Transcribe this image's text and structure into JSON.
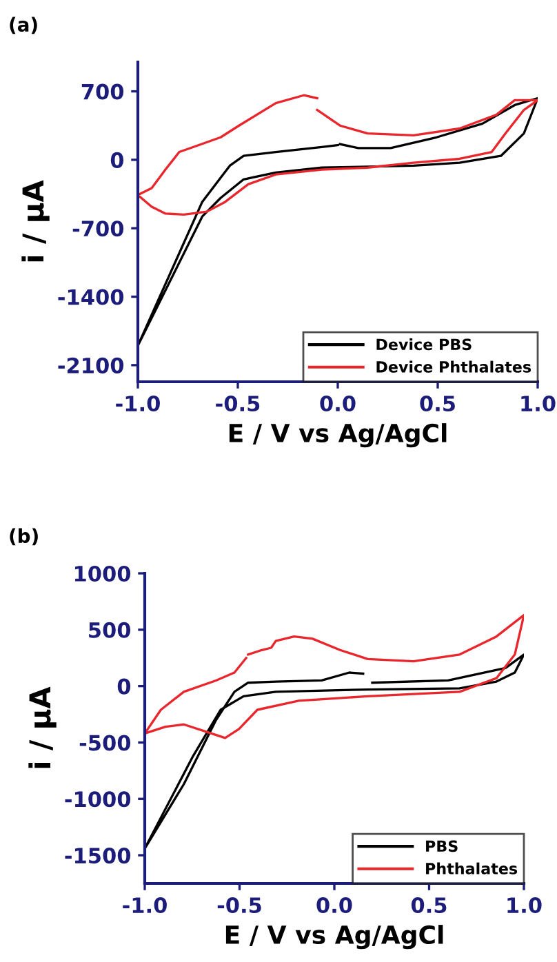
{
  "chart_data": [
    {
      "type": "line",
      "title": "(a)",
      "xlabel": "E / V vs Ag/AgCl",
      "ylabel": "i / µA",
      "xlim": [
        -1.0,
        1.0
      ],
      "xticks": [
        {
          "value": -1.0,
          "label": "-1.0"
        },
        {
          "value": -0.5,
          "label": "-0.5"
        },
        {
          "value": 0.0,
          "label": "0.0"
        },
        {
          "value": 0.5,
          "label": "0.5"
        },
        {
          "value": 1.0,
          "label": "1.0"
        }
      ],
      "ylim": [
        -2270,
        1000
      ],
      "yticks": [
        -2100,
        -1400,
        -700,
        0,
        700
      ],
      "grid": false,
      "legend": "bottom right",
      "series": [
        {
          "name": "Device PBS",
          "color": "#000000",
          "x": [
            0.011,
            0.103,
            0.264,
            0.494,
            0.724,
            0.885,
            1.0,
            0.931,
            0.816,
            0.609,
            0.379,
            0.149,
            -0.08,
            -0.31,
            -0.471,
            -0.586,
            -0.678,
            -1.0,
            -0.678,
            -0.54,
            -0.471,
            -0.31,
            -0.08,
            0.0
          ],
          "values": [
            160,
            120,
            120,
            230,
            370,
            560,
            630,
            270,
            40,
            -30,
            -60,
            -70,
            -80,
            -130,
            -200,
            -390,
            -580,
            -1900,
            -430,
            -60,
            40,
            80,
            130,
            150
          ]
        },
        {
          "name": "Device Phthalates",
          "color": "#e8262b",
          "x": [
            -0.103,
            -0.17,
            -0.31,
            -0.494,
            -0.586,
            -0.724,
            -0.793,
            -0.862,
            -0.931,
            -1.0,
            -0.931,
            -0.862,
            -0.77,
            -0.655,
            -0.563,
            -0.448,
            -0.31,
            -0.08,
            0.149,
            0.379,
            0.609,
            0.77,
            0.839,
            0.931,
            1.0,
            0.885,
            0.793,
            0.609,
            0.379,
            0.149,
            0.011,
            -0.103
          ],
          "values": [
            630,
            660,
            580,
            350,
            230,
            130,
            80,
            -100,
            -290,
            -360,
            -480,
            -550,
            -560,
            -530,
            -430,
            -250,
            -150,
            -100,
            -80,
            -30,
            10,
            80,
            270,
            510,
            610,
            610,
            460,
            320,
            250,
            270,
            350,
            510
          ]
        }
      ]
    },
    {
      "type": "line",
      "title": "(b)",
      "xlabel": "E / V vs Ag/AgCl",
      "ylabel": "i / µA",
      "xlim": [
        -1.0,
        1.0
      ],
      "xticks": [
        {
          "value": -1.0,
          "label": "-1.0"
        },
        {
          "value": -0.5,
          "label": "-0.5"
        },
        {
          "value": 0.0,
          "label": "0.0"
        },
        {
          "value": 0.5,
          "label": "0.5"
        },
        {
          "value": 1.0,
          "label": "1.0"
        }
      ],
      "ylim": [
        -1750,
        1000
      ],
      "yticks": [
        -1500,
        -1000,
        -500,
        0,
        500,
        1000
      ],
      "grid": false,
      "legend": "bottom right",
      "series": [
        {
          "name": "PBS",
          "color": "#000000",
          "x": [
            0.152,
            0.079,
            -0.067,
            -0.309,
            -0.455,
            -0.527,
            -0.624,
            -0.794,
            -1.0,
            -0.745,
            -0.6,
            -0.479,
            -0.309,
            0.176,
            0.661,
            0.855,
            0.952,
            1.0,
            0.903,
            0.6,
            0.2
          ],
          "values": [
            110,
            120,
            50,
            40,
            30,
            -50,
            -300,
            -870,
            -1440,
            -620,
            -210,
            -90,
            -50,
            -30,
            -20,
            40,
            120,
            280,
            160,
            50,
            30
          ]
        },
        {
          "name": "Phthalates",
          "color": "#e8262b",
          "x": [
            -0.455,
            -0.382,
            -0.333,
            -0.309,
            -0.212,
            -0.115,
            0.03,
            0.176,
            0.418,
            0.661,
            0.855,
            1.0,
            0.952,
            0.855,
            0.661,
            0.176,
            -0.188,
            -0.406,
            -0.503,
            -0.576,
            -0.648,
            -0.794,
            -0.891,
            -1.0,
            -0.915,
            -0.794,
            -0.624,
            -0.527,
            -0.465
          ],
          "values": [
            280,
            320,
            340,
            400,
            440,
            420,
            320,
            240,
            220,
            280,
            440,
            630,
            280,
            70,
            -50,
            -90,
            -130,
            -210,
            -380,
            -460,
            -420,
            -340,
            -360,
            -420,
            -210,
            -50,
            50,
            120,
            250
          ]
        }
      ]
    }
  ]
}
